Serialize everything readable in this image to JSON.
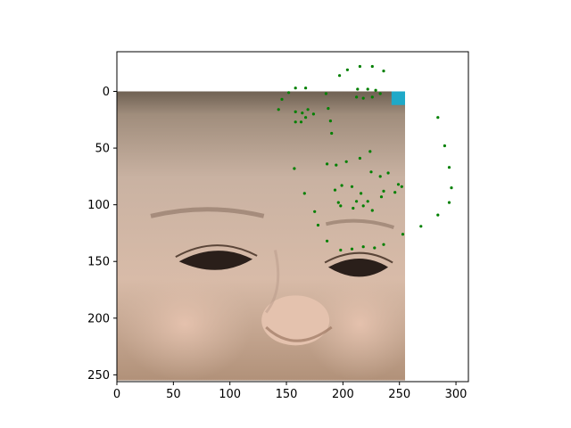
{
  "chart_data": {
    "type": "scatter",
    "title": "",
    "xlabel": "",
    "ylabel": "",
    "xlim": [
      0,
      311
    ],
    "ylim": [
      256,
      -35
    ],
    "y_inverted": true,
    "grid": false,
    "legend": "none",
    "background_image": {
      "description_icon": "baby-face-photo",
      "extent_x": [
        0,
        255
      ],
      "extent_y": [
        255,
        0
      ]
    },
    "x_ticks": [
      0,
      50,
      100,
      150,
      200,
      250,
      300
    ],
    "y_ticks": [
      0,
      50,
      100,
      150,
      200,
      250
    ],
    "x_tick_labels": [
      "0",
      "50",
      "100",
      "150",
      "200",
      "250",
      "300"
    ],
    "y_tick_labels": [
      "0",
      "50",
      "100",
      "150",
      "200",
      "250"
    ],
    "series": [
      {
        "marker": "point",
        "color": "#008000",
        "points": [
          [
            143,
            16
          ],
          [
            146,
            7
          ],
          [
            152,
            1
          ],
          [
            158,
            -3
          ],
          [
            167,
            -3
          ],
          [
            158,
            18
          ],
          [
            164,
            19
          ],
          [
            169,
            16
          ],
          [
            174,
            20
          ],
          [
            167,
            23
          ],
          [
            158,
            27
          ],
          [
            163,
            27
          ],
          [
            185,
            2
          ],
          [
            187,
            15
          ],
          [
            189,
            26
          ],
          [
            190,
            37
          ],
          [
            197,
            -14
          ],
          [
            204,
            -19
          ],
          [
            215,
            -22
          ],
          [
            226,
            -22
          ],
          [
            236,
            -18
          ],
          [
            213,
            -2
          ],
          [
            222,
            -2
          ],
          [
            229,
            -1
          ],
          [
            218,
            6
          ],
          [
            212,
            5
          ],
          [
            226,
            5
          ],
          [
            233,
            2
          ],
          [
            157,
            68
          ],
          [
            186,
            64
          ],
          [
            194,
            65
          ],
          [
            203,
            62
          ],
          [
            215,
            59
          ],
          [
            224,
            53
          ],
          [
            166,
            90
          ],
          [
            175,
            106
          ],
          [
            178,
            118
          ],
          [
            186,
            132
          ],
          [
            193,
            87
          ],
          [
            196,
            98
          ],
          [
            198,
            101
          ],
          [
            199,
            83
          ],
          [
            208,
            84
          ],
          [
            212,
            97
          ],
          [
            216,
            90
          ],
          [
            222,
            97
          ],
          [
            234,
            93
          ],
          [
            236,
            88
          ],
          [
            225,
            71
          ],
          [
            233,
            75
          ],
          [
            240,
            72
          ],
          [
            246,
            89
          ],
          [
            249,
            82
          ],
          [
            252,
            84
          ],
          [
            209,
            103
          ],
          [
            218,
            101
          ],
          [
            226,
            105
          ],
          [
            198,
            140
          ],
          [
            208,
            139
          ],
          [
            218,
            137
          ],
          [
            228,
            138
          ],
          [
            236,
            135
          ],
          [
            253,
            126
          ],
          [
            269,
            119
          ],
          [
            284,
            109
          ],
          [
            284,
            23
          ],
          [
            290,
            48
          ],
          [
            294,
            67
          ],
          [
            296,
            85
          ],
          [
            294,
            98
          ]
        ]
      }
    ]
  }
}
